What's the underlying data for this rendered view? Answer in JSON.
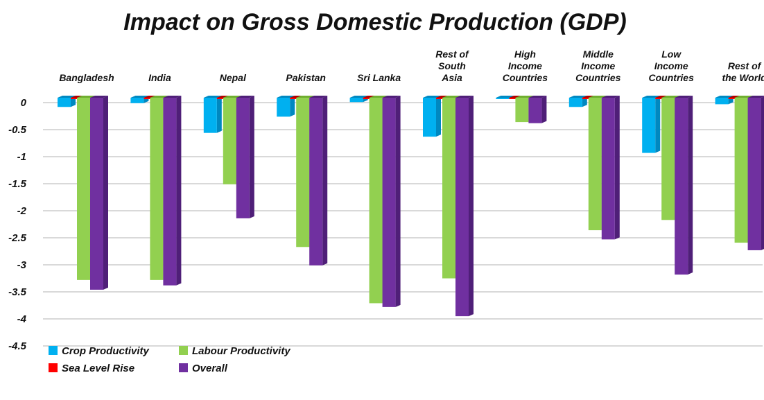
{
  "chart_data": {
    "type": "bar",
    "title": "Impact on Gross Domestic Production (GDP)",
    "xlabel": "",
    "ylabel": "",
    "ylim": [
      -4.5,
      0
    ],
    "yticks": [
      "0",
      "-0.5",
      "-1",
      "-1.5",
      "-2",
      "-2.5",
      "-3",
      "-3.5",
      "-4",
      "-4.5"
    ],
    "grid": true,
    "legend_position": "bottom-left",
    "categories": [
      [
        "Bangladesh"
      ],
      [
        "India"
      ],
      [
        "Nepal"
      ],
      [
        "Pakistan"
      ],
      [
        "Sri Lanka"
      ],
      [
        "Rest of",
        "South",
        "Asia"
      ],
      [
        "High",
        "Income",
        "Countries"
      ],
      [
        "Middle",
        "Income",
        "Countries"
      ],
      [
        "Low",
        "Income",
        "Countries"
      ],
      [
        "Rest of",
        "the World"
      ]
    ],
    "series": [
      {
        "name": "Crop Productivity",
        "color": "#00b0f0",
        "side": "#0088c0",
        "values": [
          -0.17,
          -0.1,
          -0.65,
          -0.35,
          -0.08,
          -0.72,
          -0.02,
          -0.17,
          -1.02,
          -0.12
        ]
      },
      {
        "name": "Sea Level Rise",
        "color": "#ff0000",
        "side": "#b00000",
        "values": [
          -0.01,
          -0.01,
          -0.01,
          -0.01,
          -0.01,
          -0.01,
          -0.01,
          -0.01,
          -0.01,
          -0.01
        ]
      },
      {
        "name": "Labour Productivity",
        "color": "#92d050",
        "side": "#6fae30",
        "values": [
          -3.37,
          -3.37,
          -1.6,
          -2.76,
          -3.8,
          -3.34,
          -0.45,
          -2.45,
          -2.26,
          -2.68
        ]
      },
      {
        "name": "Overall",
        "color": "#7030a0",
        "side": "#4f1f78",
        "values": [
          -3.55,
          -3.47,
          -2.23,
          -3.1,
          -3.87,
          -4.04,
          -0.47,
          -2.62,
          -3.27,
          -2.82
        ]
      }
    ]
  }
}
